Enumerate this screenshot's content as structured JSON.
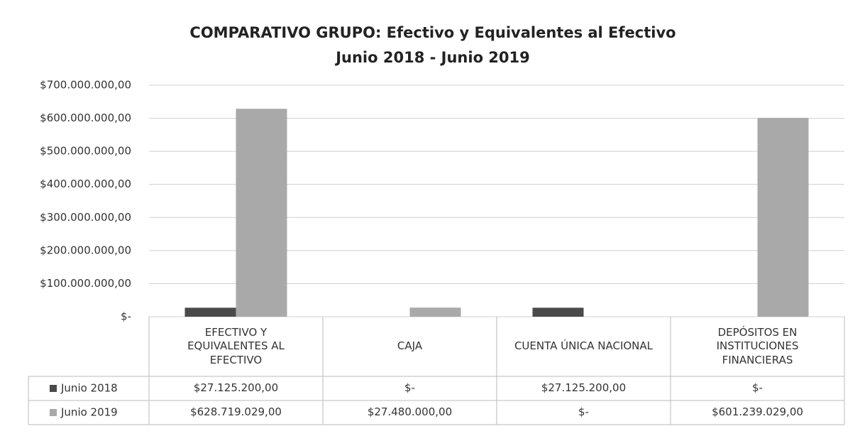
{
  "chart_data": {
    "type": "bar",
    "title": "COMPARATIVO GRUPO: Efectivo y Equivalentes al Efectivo",
    "subtitle": "Junio 2018 - Junio 2019",
    "categories": [
      "EFECTIVO Y EQUIVALENTES AL EFECTIVO",
      "CAJA",
      "CUENTA ÚNICA NACIONAL",
      "DEPÓSITOS EN INSTITUCIONES FINANCIERAS"
    ],
    "series": [
      {
        "name": "Junio 2018",
        "color": "#4a4a4a",
        "values": [
          27125200,
          0,
          27125200,
          0
        ],
        "value_labels": [
          "$27.125.200,00",
          "$-",
          "$27.125.200,00",
          "$-"
        ]
      },
      {
        "name": "Junio 2019",
        "color": "#a9a9a9",
        "values": [
          628719029,
          27480000,
          0,
          601239029
        ],
        "value_labels": [
          "$628.719.029,00",
          "$27.480.000,00",
          "$-",
          "$601.239.029,00"
        ]
      }
    ],
    "ylim": [
      0,
      700000000
    ],
    "yticks": [
      {
        "value": 0,
        "label": "$-"
      },
      {
        "value": 100000000,
        "label": "$100.000.000,00"
      },
      {
        "value": 200000000,
        "label": "$200.000.000,00"
      },
      {
        "value": 300000000,
        "label": "$300.000.000,00"
      },
      {
        "value": 400000000,
        "label": "$400.000.000,00"
      },
      {
        "value": 500000000,
        "label": "$500.000.000,00"
      },
      {
        "value": 600000000,
        "label": "$600.000.000,00"
      },
      {
        "value": 700000000,
        "label": "$700.000.000,00"
      }
    ],
    "grid": true
  }
}
